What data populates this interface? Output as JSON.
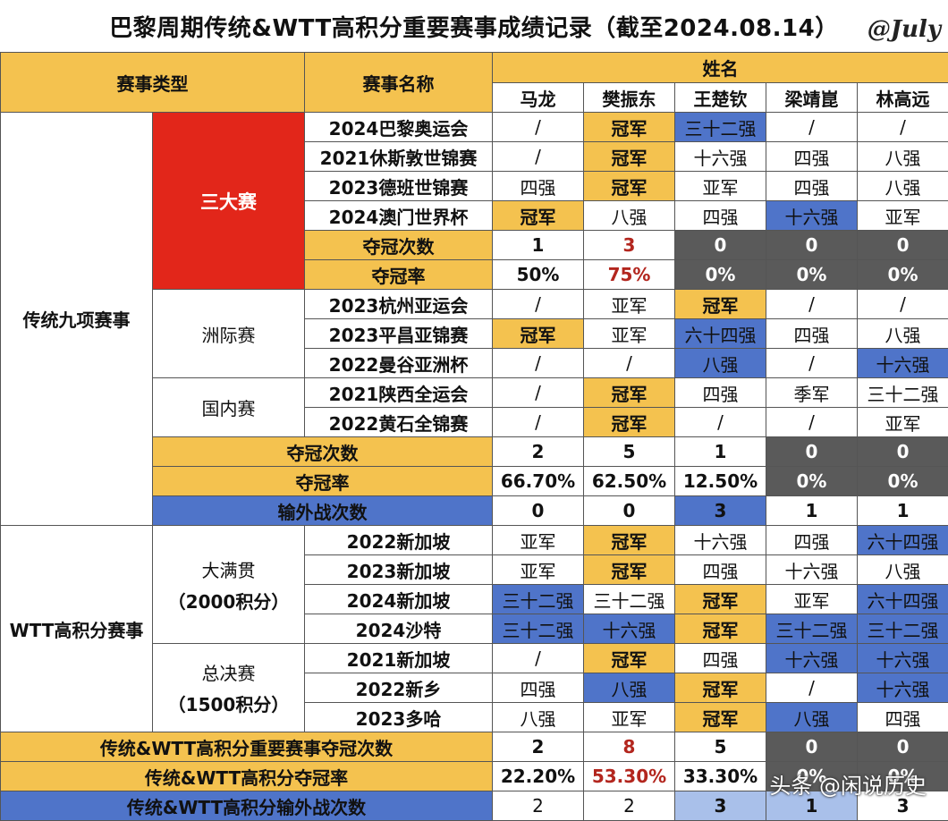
{
  "title": "巴黎周期传统&WTT高积分重要赛事成绩记录（截至2024.08.14）",
  "watermark_top": "@July",
  "watermark_bottom": "头条 @闲说历史",
  "header": {
    "type": "赛事类型",
    "event": "赛事名称",
    "names": "姓名",
    "players": [
      "马龙",
      "樊振东",
      "王楚钦",
      "梁靖崑",
      "林高远"
    ]
  },
  "groups": {
    "traditional": "传统九项赛事",
    "big3": "三大赛",
    "continental": "洲际赛",
    "domestic": "国内赛",
    "wtt": "WTT高积分赛事",
    "grand_smash": "大满贯",
    "grand_smash_pts": "（2000积分）",
    "finals": "总决赛",
    "finals_pts": "（1500积分）"
  },
  "rows": {
    "r1": {
      "label": "2024巴黎奥运会",
      "v": [
        "/",
        "冠军",
        "三十二强",
        "/",
        "/"
      ]
    },
    "r2": {
      "label": "2021休斯敦世锦赛",
      "v": [
        "/",
        "冠军",
        "十六强",
        "四强",
        "八强"
      ]
    },
    "r3": {
      "label": "2023德班世锦赛",
      "v": [
        "四强",
        "冠军",
        "亚军",
        "四强",
        "八强"
      ]
    },
    "r4": {
      "label": "2024澳门世界杯",
      "v": [
        "冠军",
        "八强",
        "四强",
        "十六强",
        "亚军"
      ]
    },
    "r5": {
      "label": "夺冠次数",
      "v": [
        "1",
        "3",
        "0",
        "0",
        "0"
      ]
    },
    "r6": {
      "label": "夺冠率",
      "v": [
        "50%",
        "75%",
        "0%",
        "0%",
        "0%"
      ]
    },
    "r7": {
      "label": "2023杭州亚运会",
      "v": [
        "/",
        "亚军",
        "冠军",
        "/",
        "/"
      ]
    },
    "r8": {
      "label": "2023平昌亚锦赛",
      "v": [
        "冠军",
        "亚军",
        "六十四强",
        "四强",
        "八强"
      ]
    },
    "r9": {
      "label": "2022曼谷亚洲杯",
      "v": [
        "/",
        "/",
        "八强",
        "/",
        "十六强"
      ]
    },
    "r10": {
      "label": "2021陕西全运会",
      "v": [
        "/",
        "冠军",
        "四强",
        "季军",
        "三十二强"
      ]
    },
    "r11": {
      "label": "2022黄石全锦赛",
      "v": [
        "/",
        "冠军",
        "/",
        "/",
        "亚军"
      ]
    },
    "r12": {
      "label": "夺冠次数",
      "v": [
        "2",
        "5",
        "1",
        "0",
        "0"
      ]
    },
    "r13": {
      "label": "夺冠率",
      "v": [
        "66.70%",
        "62.50%",
        "12.50%",
        "0%",
        "0%"
      ]
    },
    "r14": {
      "label": "输外战次数",
      "v": [
        "0",
        "0",
        "3",
        "1",
        "1"
      ]
    },
    "r15": {
      "label": "2022新加坡",
      "v": [
        "亚军",
        "冠军",
        "十六强",
        "四强",
        "六十四强"
      ]
    },
    "r16": {
      "label": "2023新加坡",
      "v": [
        "亚军",
        "冠军",
        "四强",
        "十六强",
        "八强"
      ]
    },
    "r17": {
      "label": "2024新加坡",
      "v": [
        "三十二强",
        "三十二强",
        "冠军",
        "亚军",
        "六十四强"
      ]
    },
    "r18": {
      "label": "2024沙特",
      "v": [
        "三十二强",
        "十六强",
        "冠军",
        "三十二强",
        "三十二强"
      ]
    },
    "r19": {
      "label": "2021新加坡",
      "v": [
        "/",
        "冠军",
        "四强",
        "十六强",
        "十六强"
      ]
    },
    "r20": {
      "label": "2022新乡",
      "v": [
        "四强",
        "八强",
        "冠军",
        "/",
        "十六强"
      ]
    },
    "r21": {
      "label": "2023多哈",
      "v": [
        "八强",
        "亚军",
        "冠军",
        "八强",
        "四强"
      ]
    },
    "r22": {
      "label": "传统&WTT高积分重要赛事夺冠次数",
      "v": [
        "2",
        "8",
        "5",
        "0",
        "0"
      ]
    },
    "r23": {
      "label": "传统&WTT高积分夺冠率",
      "v": [
        "22.20%",
        "53.30%",
        "33.30%",
        "0%",
        "0%"
      ]
    },
    "r24": {
      "label": "传统&WTT高积分输外战次数",
      "v": [
        "2",
        "2",
        "3",
        "1",
        "3"
      ]
    }
  },
  "colors": {
    "gold": "#f4c24f",
    "blue": "#4f74c9",
    "gray": "#5a5a5a",
    "red": "#e2261a"
  }
}
